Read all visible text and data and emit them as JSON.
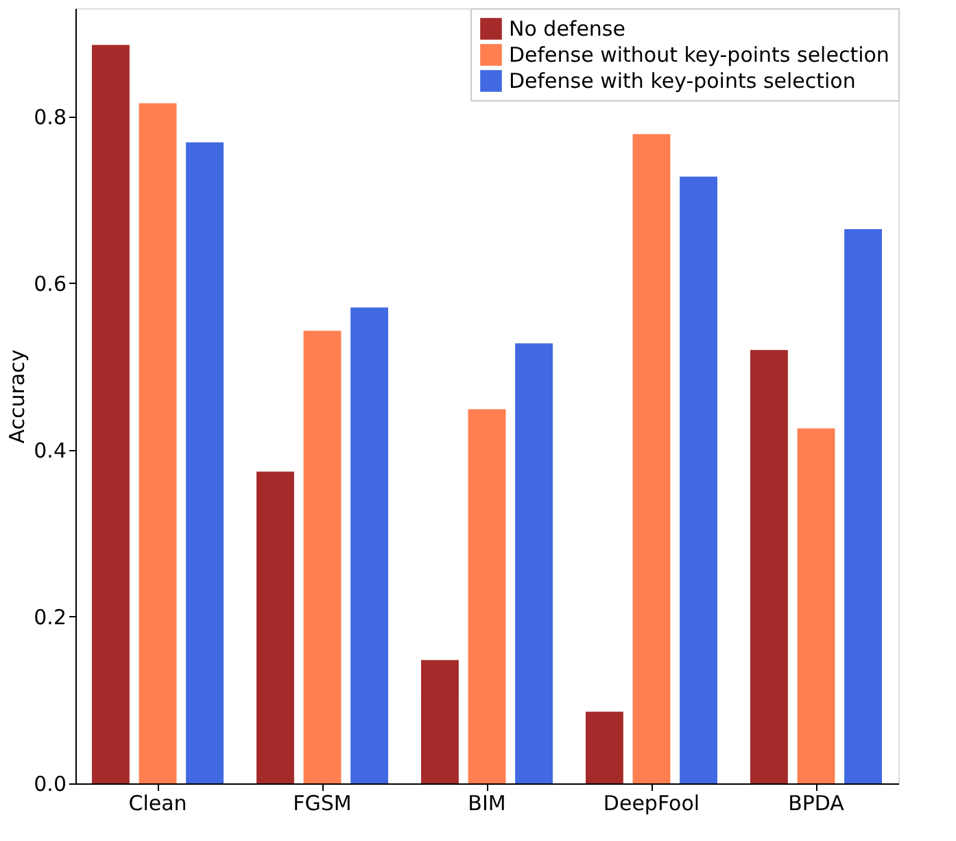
{
  "chart_data": {
    "type": "bar",
    "ylabel": "Accuracy",
    "categories": [
      "Clean",
      "FGSM",
      "BIM",
      "DeepFool",
      "BPDA"
    ],
    "series": [
      {
        "name": "No defense",
        "color": "#a52a2a",
        "values": [
          0.886,
          0.374,
          0.148,
          0.086,
          0.52
        ]
      },
      {
        "name": "Defense without key-points selection",
        "color": "#ff7f50",
        "values": [
          0.816,
          0.543,
          0.449,
          0.779,
          0.426
        ]
      },
      {
        "name": "Defense with key-points selection",
        "color": "#4169e1",
        "values": [
          0.769,
          0.571,
          0.528,
          0.728,
          0.665
        ]
      }
    ],
    "ylim": [
      0,
      0.93
    ],
    "yticks": [
      {
        "value": 0,
        "label": "0.0"
      },
      {
        "value": 0.2,
        "label": "0.2"
      },
      {
        "value": 0.4,
        "label": "0.4"
      },
      {
        "value": 0.6,
        "label": "0.6"
      },
      {
        "value": 0.8,
        "label": "0.8"
      }
    ],
    "grid": false,
    "legend": "top right"
  }
}
